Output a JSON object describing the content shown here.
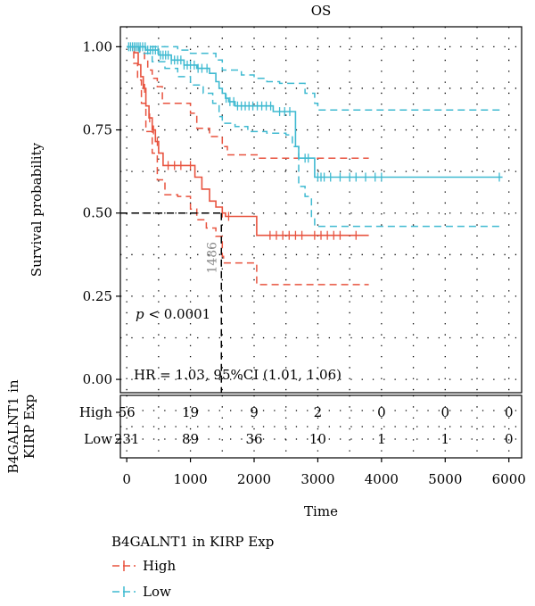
{
  "chart_data": {
    "type": "line",
    "title": "OS",
    "xlabel": "Time",
    "ylabel": "Survival probability",
    "xlim": [
      -100,
      6200
    ],
    "ylim": [
      -0.04,
      1.06
    ],
    "x_ticks": [
      "0",
      "1000",
      "2000",
      "3000",
      "4000",
      "5000",
      "6000"
    ],
    "y_ticks": [
      "0.00",
      "0.25",
      "0.50",
      "0.75",
      "1.00"
    ],
    "grid": true,
    "annotations": {
      "p_label": "p",
      "p_value": " < 0.0001",
      "hr_text": "HR = 1.03, 95%CI (1.01, 1.06)",
      "median_label": "1486",
      "median_time": 1486
    },
    "legend_title": "B4GALNT1 in KIRP Exp",
    "series": [
      {
        "name": "High",
        "color": "#E8533F",
        "curve": [
          [
            0,
            1
          ],
          [
            120,
            0.982
          ],
          [
            180,
            0.946
          ],
          [
            220,
            0.91
          ],
          [
            260,
            0.875
          ],
          [
            300,
            0.822
          ],
          [
            350,
            0.786
          ],
          [
            400,
            0.75
          ],
          [
            450,
            0.715
          ],
          [
            500,
            0.68
          ],
          [
            570,
            0.643
          ],
          [
            750,
            0.643
          ],
          [
            1000,
            0.643
          ],
          [
            1070,
            0.608
          ],
          [
            1180,
            0.572
          ],
          [
            1300,
            0.536
          ],
          [
            1400,
            0.518
          ],
          [
            1500,
            0.5
          ],
          [
            1550,
            0.49
          ],
          [
            2000,
            0.49
          ],
          [
            2040,
            0.433
          ],
          [
            3800,
            0.433
          ]
        ],
        "upper": [
          [
            0,
            1
          ],
          [
            150,
            1
          ],
          [
            200,
            0.985
          ],
          [
            280,
            0.96
          ],
          [
            330,
            0.93
          ],
          [
            400,
            0.905
          ],
          [
            480,
            0.88
          ],
          [
            560,
            0.83
          ],
          [
            650,
            0.83
          ],
          [
            1000,
            0.8
          ],
          [
            1100,
            0.755
          ],
          [
            1300,
            0.73
          ],
          [
            1500,
            0.7
          ],
          [
            1580,
            0.675
          ],
          [
            2000,
            0.675
          ],
          [
            2060,
            0.665
          ],
          [
            3800,
            0.665
          ]
        ],
        "lower": [
          [
            0,
            1
          ],
          [
            110,
            0.95
          ],
          [
            170,
            0.9
          ],
          [
            230,
            0.83
          ],
          [
            300,
            0.745
          ],
          [
            400,
            0.68
          ],
          [
            480,
            0.6
          ],
          [
            600,
            0.555
          ],
          [
            800,
            0.55
          ],
          [
            1000,
            0.512
          ],
          [
            1100,
            0.48
          ],
          [
            1250,
            0.455
          ],
          [
            1400,
            0.43
          ],
          [
            1500,
            0.37
          ],
          [
            1520,
            0.35
          ],
          [
            2000,
            0.35
          ],
          [
            2040,
            0.285
          ],
          [
            3800,
            0.285
          ]
        ],
        "censors": [
          280,
          360,
          420,
          480,
          650,
          750,
          850,
          1000,
          1500,
          1600,
          2250,
          2350,
          2450,
          2550,
          2650,
          2750,
          2950,
          3050,
          3150,
          3250,
          3350,
          3600
        ]
      },
      {
        "name": "Low",
        "color": "#3FBAD1",
        "curve": [
          [
            0,
            1
          ],
          [
            300,
            0.99
          ],
          [
            500,
            0.975
          ],
          [
            700,
            0.96
          ],
          [
            900,
            0.945
          ],
          [
            1100,
            0.935
          ],
          [
            1300,
            0.92
          ],
          [
            1400,
            0.895
          ],
          [
            1450,
            0.875
          ],
          [
            1500,
            0.86
          ],
          [
            1550,
            0.845
          ],
          [
            1600,
            0.835
          ],
          [
            1700,
            0.822
          ],
          [
            2000,
            0.822
          ],
          [
            2150,
            0.822
          ],
          [
            2300,
            0.805
          ],
          [
            2600,
            0.805
          ],
          [
            2650,
            0.7
          ],
          [
            2700,
            0.665
          ],
          [
            2900,
            0.665
          ],
          [
            2950,
            0.608
          ],
          [
            5900,
            0.608
          ]
        ],
        "upper": [
          [
            0,
            1
          ],
          [
            400,
            1
          ],
          [
            800,
            0.99
          ],
          [
            1000,
            0.98
          ],
          [
            1300,
            0.98
          ],
          [
            1400,
            0.96
          ],
          [
            1500,
            0.93
          ],
          [
            1800,
            0.915
          ],
          [
            2000,
            0.905
          ],
          [
            2200,
            0.895
          ],
          [
            2400,
            0.89
          ],
          [
            2700,
            0.89
          ],
          [
            2800,
            0.86
          ],
          [
            2950,
            0.83
          ],
          [
            3000,
            0.81
          ],
          [
            5900,
            0.81
          ]
        ],
        "lower": [
          [
            0,
            1
          ],
          [
            200,
            0.98
          ],
          [
            400,
            0.955
          ],
          [
            600,
            0.935
          ],
          [
            800,
            0.91
          ],
          [
            1000,
            0.885
          ],
          [
            1200,
            0.86
          ],
          [
            1350,
            0.83
          ],
          [
            1450,
            0.79
          ],
          [
            1500,
            0.77
          ],
          [
            1700,
            0.76
          ],
          [
            1900,
            0.745
          ],
          [
            2200,
            0.74
          ],
          [
            2500,
            0.735
          ],
          [
            2600,
            0.7
          ],
          [
            2700,
            0.58
          ],
          [
            2800,
            0.55
          ],
          [
            2900,
            0.49
          ],
          [
            2950,
            0.46
          ],
          [
            5900,
            0.46
          ]
        ],
        "censors": [
          30,
          60,
          90,
          120,
          150,
          180,
          210,
          250,
          290,
          330,
          370,
          410,
          450,
          490,
          530,
          570,
          610,
          650,
          700,
          750,
          800,
          850,
          900,
          950,
          1000,
          1060,
          1120,
          1180,
          1260,
          1560,
          1620,
          1680,
          1740,
          1800,
          1860,
          1920,
          1980,
          2050,
          2120,
          2190,
          2260,
          2400,
          2480,
          2560,
          2800,
          2850,
          3000,
          3050,
          3100,
          3200,
          3350,
          3500,
          3600,
          3750,
          3900,
          4000,
          5850
        ]
      }
    ],
    "risk_table": {
      "title": "B4GALNT1 in KIRP Exp",
      "times": [
        0,
        1000,
        2000,
        3000,
        4000,
        5000,
        6000
      ],
      "rows": [
        {
          "name": "High",
          "values": [
            "56",
            "19",
            "9",
            "2",
            "0",
            "0",
            "0"
          ]
        },
        {
          "name": "Low",
          "values": [
            "231",
            "89",
            "36",
            "10",
            "1",
            "1",
            "0"
          ]
        }
      ]
    }
  }
}
